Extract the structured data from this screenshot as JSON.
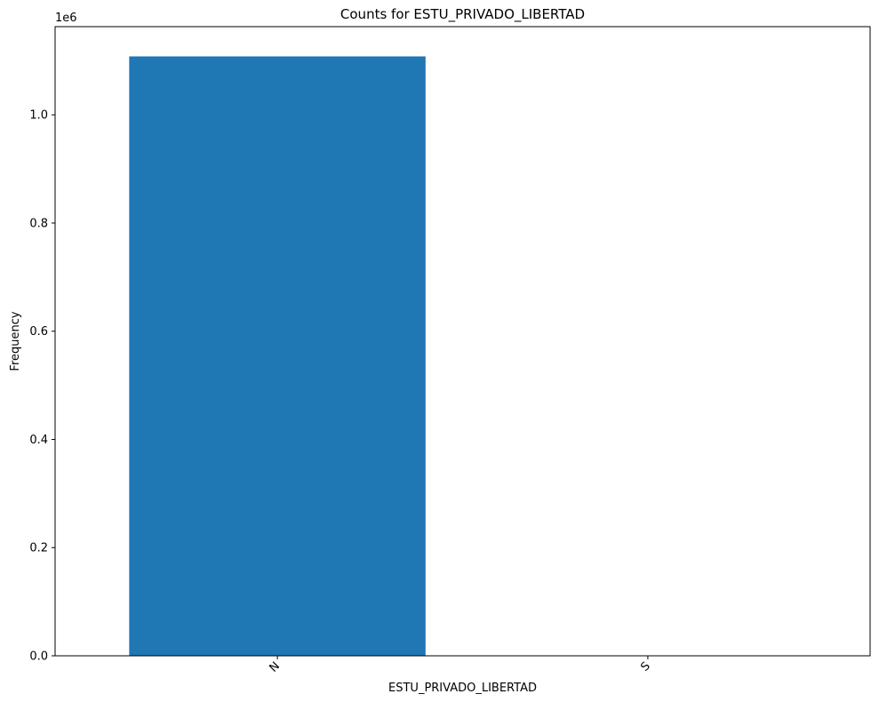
{
  "chart_data": {
    "type": "bar",
    "title": "Counts for ESTU_PRIVADO_LIBERTAD",
    "xlabel": "ESTU_PRIVADO_LIBERTAD",
    "ylabel": "Frequency",
    "categories": [
      "N",
      "S"
    ],
    "values": [
      1108000,
      600
    ],
    "ylim": [
      0,
      1163000
    ],
    "yticks": [
      0,
      0.2,
      0.4,
      0.6,
      0.8,
      1.0
    ],
    "ytick_labels": [
      "0.0",
      "0.2",
      "0.4",
      "0.6",
      "0.8",
      "1.0"
    ],
    "y_offset_label": "1e6",
    "bar_color": "#1f77b4",
    "grid": false,
    "legend": "none"
  }
}
